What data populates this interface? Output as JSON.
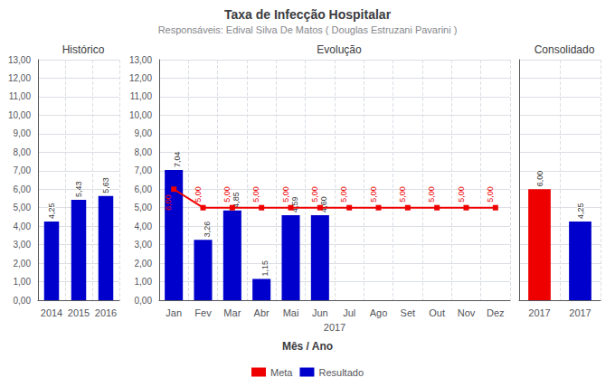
{
  "title": "Taxa de Infecção Hospitalar",
  "subtitle": "Responsáveis: Edival Silva De Matos ( Douglas Estruzani Pavarini )",
  "xlabel": "Mês / Ano",
  "chart_data": [
    {
      "type": "bar",
      "title": "Histórico",
      "categories": [
        "2014",
        "2015",
        "2016"
      ],
      "values": [
        4.25,
        5.43,
        5.63
      ],
      "value_labels": [
        "4,25",
        "5,43",
        "5,63"
      ],
      "color": "#0000CC",
      "data_labels": true,
      "ylim": [
        0,
        13
      ],
      "yticks": [
        {
          "value": 0,
          "label": "0,00"
        },
        {
          "value": 1,
          "label": "1,00"
        },
        {
          "value": 2,
          "label": "2,00"
        },
        {
          "value": 3,
          "label": "3,00"
        },
        {
          "value": 4,
          "label": "4,00"
        },
        {
          "value": 5,
          "label": "5,00"
        },
        {
          "value": 6,
          "label": "6,00"
        },
        {
          "value": 7,
          "label": "7,00"
        },
        {
          "value": 8,
          "label": "8,00"
        },
        {
          "value": 9,
          "label": "9,00"
        },
        {
          "value": 10,
          "label": "10,00"
        },
        {
          "value": 11,
          "label": "11,00"
        },
        {
          "value": 12,
          "label": "12,00"
        },
        {
          "value": 13,
          "label": "13,00"
        }
      ],
      "grid": true
    },
    {
      "type": "bar",
      "title": "Evolução",
      "xlabel": "2017",
      "categories": [
        "Jan",
        "Fev",
        "Mar",
        "Abr",
        "Mai",
        "Jun",
        "Jul",
        "Ago",
        "Set",
        "Out",
        "Nov",
        "Dez"
      ],
      "series": [
        {
          "name": "Meta",
          "type": "line",
          "color": "#EE0000",
          "marker": "square",
          "values": [
            6.0,
            5.0,
            5.0,
            5.0,
            5.0,
            5.0,
            5.0,
            5.0,
            5.0,
            5.0,
            5.0,
            5.0
          ],
          "value_labels": [
            "6,00",
            "5,00",
            "5,00",
            "5,00",
            "5,00",
            "5,00",
            "5,00",
            "5,00",
            "5,00",
            "5,00",
            "5,00",
            "5,00"
          ]
        },
        {
          "name": "Resultado",
          "type": "bar",
          "color": "#0000CC",
          "values": [
            7.04,
            3.26,
            4.85,
            1.15,
            4.59,
            4.6,
            null,
            null,
            null,
            null,
            null,
            null
          ],
          "value_labels": [
            "7,04",
            "3,26",
            "4,85",
            "1,15",
            "4,59",
            "4,60",
            null,
            null,
            null,
            null,
            null,
            null
          ]
        }
      ],
      "data_labels": true,
      "ylim": [
        0,
        13
      ],
      "yticks": [
        {
          "value": 0,
          "label": "0,00"
        },
        {
          "value": 1,
          "label": "1,00"
        },
        {
          "value": 2,
          "label": "2,00"
        },
        {
          "value": 3,
          "label": "3,00"
        },
        {
          "value": 4,
          "label": "4,00"
        },
        {
          "value": 5,
          "label": "5,00"
        },
        {
          "value": 6,
          "label": "6,00"
        },
        {
          "value": 7,
          "label": "7,00"
        },
        {
          "value": 8,
          "label": "8,00"
        },
        {
          "value": 9,
          "label": "9,00"
        },
        {
          "value": 10,
          "label": "10,00"
        },
        {
          "value": 11,
          "label": "11,00"
        },
        {
          "value": 12,
          "label": "12,00"
        },
        {
          "value": 13,
          "label": "13,00"
        }
      ],
      "grid": true
    },
    {
      "type": "bar",
      "title": "Consolidado",
      "categories": [
        "2017",
        "2017"
      ],
      "values": [
        6.0,
        4.25
      ],
      "value_labels": [
        "6,00",
        "4,25"
      ],
      "colors": [
        "#EE0000",
        "#0000CC"
      ],
      "data_labels": true,
      "tick_labels": "x",
      "ylim": [
        0,
        13
      ],
      "yticks": [
        0,
        1,
        2,
        3,
        4,
        5,
        6,
        7,
        8,
        9,
        10,
        11,
        12,
        13
      ],
      "grid": true
    }
  ]
}
